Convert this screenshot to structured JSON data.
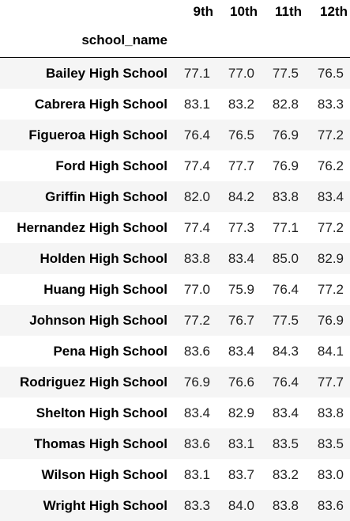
{
  "table": {
    "index_name": "school_name",
    "columns": [
      "9th",
      "10th",
      "11th",
      "12th"
    ],
    "rows": [
      {
        "name": "Bailey High School",
        "values": [
          "77.1",
          "77.0",
          "77.5",
          "76.5"
        ]
      },
      {
        "name": "Cabrera High School",
        "values": [
          "83.1",
          "83.2",
          "82.8",
          "83.3"
        ]
      },
      {
        "name": "Figueroa High School",
        "values": [
          "76.4",
          "76.5",
          "76.9",
          "77.2"
        ]
      },
      {
        "name": "Ford High School",
        "values": [
          "77.4",
          "77.7",
          "76.9",
          "76.2"
        ]
      },
      {
        "name": "Griffin High School",
        "values": [
          "82.0",
          "84.2",
          "83.8",
          "83.4"
        ]
      },
      {
        "name": "Hernandez High School",
        "values": [
          "77.4",
          "77.3",
          "77.1",
          "77.2"
        ]
      },
      {
        "name": "Holden High School",
        "values": [
          "83.8",
          "83.4",
          "85.0",
          "82.9"
        ]
      },
      {
        "name": "Huang High School",
        "values": [
          "77.0",
          "75.9",
          "76.4",
          "77.2"
        ]
      },
      {
        "name": "Johnson High School",
        "values": [
          "77.2",
          "76.7",
          "77.5",
          "76.9"
        ]
      },
      {
        "name": "Pena High School",
        "values": [
          "83.6",
          "83.4",
          "84.3",
          "84.1"
        ]
      },
      {
        "name": "Rodriguez High School",
        "values": [
          "76.9",
          "76.6",
          "76.4",
          "77.7"
        ]
      },
      {
        "name": "Shelton High School",
        "values": [
          "83.4",
          "82.9",
          "83.4",
          "83.8"
        ]
      },
      {
        "name": "Thomas High School",
        "values": [
          "83.6",
          "83.1",
          "83.5",
          "83.5"
        ]
      },
      {
        "name": "Wilson High School",
        "values": [
          "83.1",
          "83.7",
          "83.2",
          "83.0"
        ]
      },
      {
        "name": "Wright High School",
        "values": [
          "83.3",
          "84.0",
          "83.8",
          "83.6"
        ]
      }
    ]
  }
}
